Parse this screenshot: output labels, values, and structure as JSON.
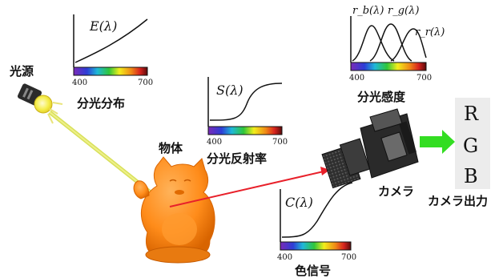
{
  "labels": {
    "light_source": "光源",
    "object": "物体",
    "camera": "カメラ",
    "camera_output": "カメラ出力"
  },
  "plots": {
    "illuminant": {
      "title": "E(λ)",
      "caption": "分光分布",
      "x_min": "400",
      "x_max": "700"
    },
    "reflectance": {
      "title": "S(λ)",
      "caption": "分光反射率",
      "x_min": "400",
      "x_max": "700"
    },
    "sensitivity": {
      "title_b": "r_b(λ)",
      "title_g": "r_g(λ)",
      "title_r": "r_r(λ)",
      "caption": "分光感度",
      "x_min": "400",
      "x_max": "700"
    },
    "color_signal": {
      "title": "C(λ)",
      "caption": "色信号",
      "x_min": "400",
      "x_max": "700"
    }
  },
  "outputs": {
    "r": "R",
    "g": "G",
    "b": "B"
  },
  "colors": {
    "object": "#ff8c1a",
    "object_dark": "#e06a00",
    "light_ray": "#d8e05a",
    "reflected_ray": "#e8202a",
    "output_arrow": "#33dd22",
    "camera_body": "#2a2a2a",
    "lens": "#3c3c3c",
    "bulb": "#f5ee4a",
    "rgb_panel": "#ececec"
  }
}
